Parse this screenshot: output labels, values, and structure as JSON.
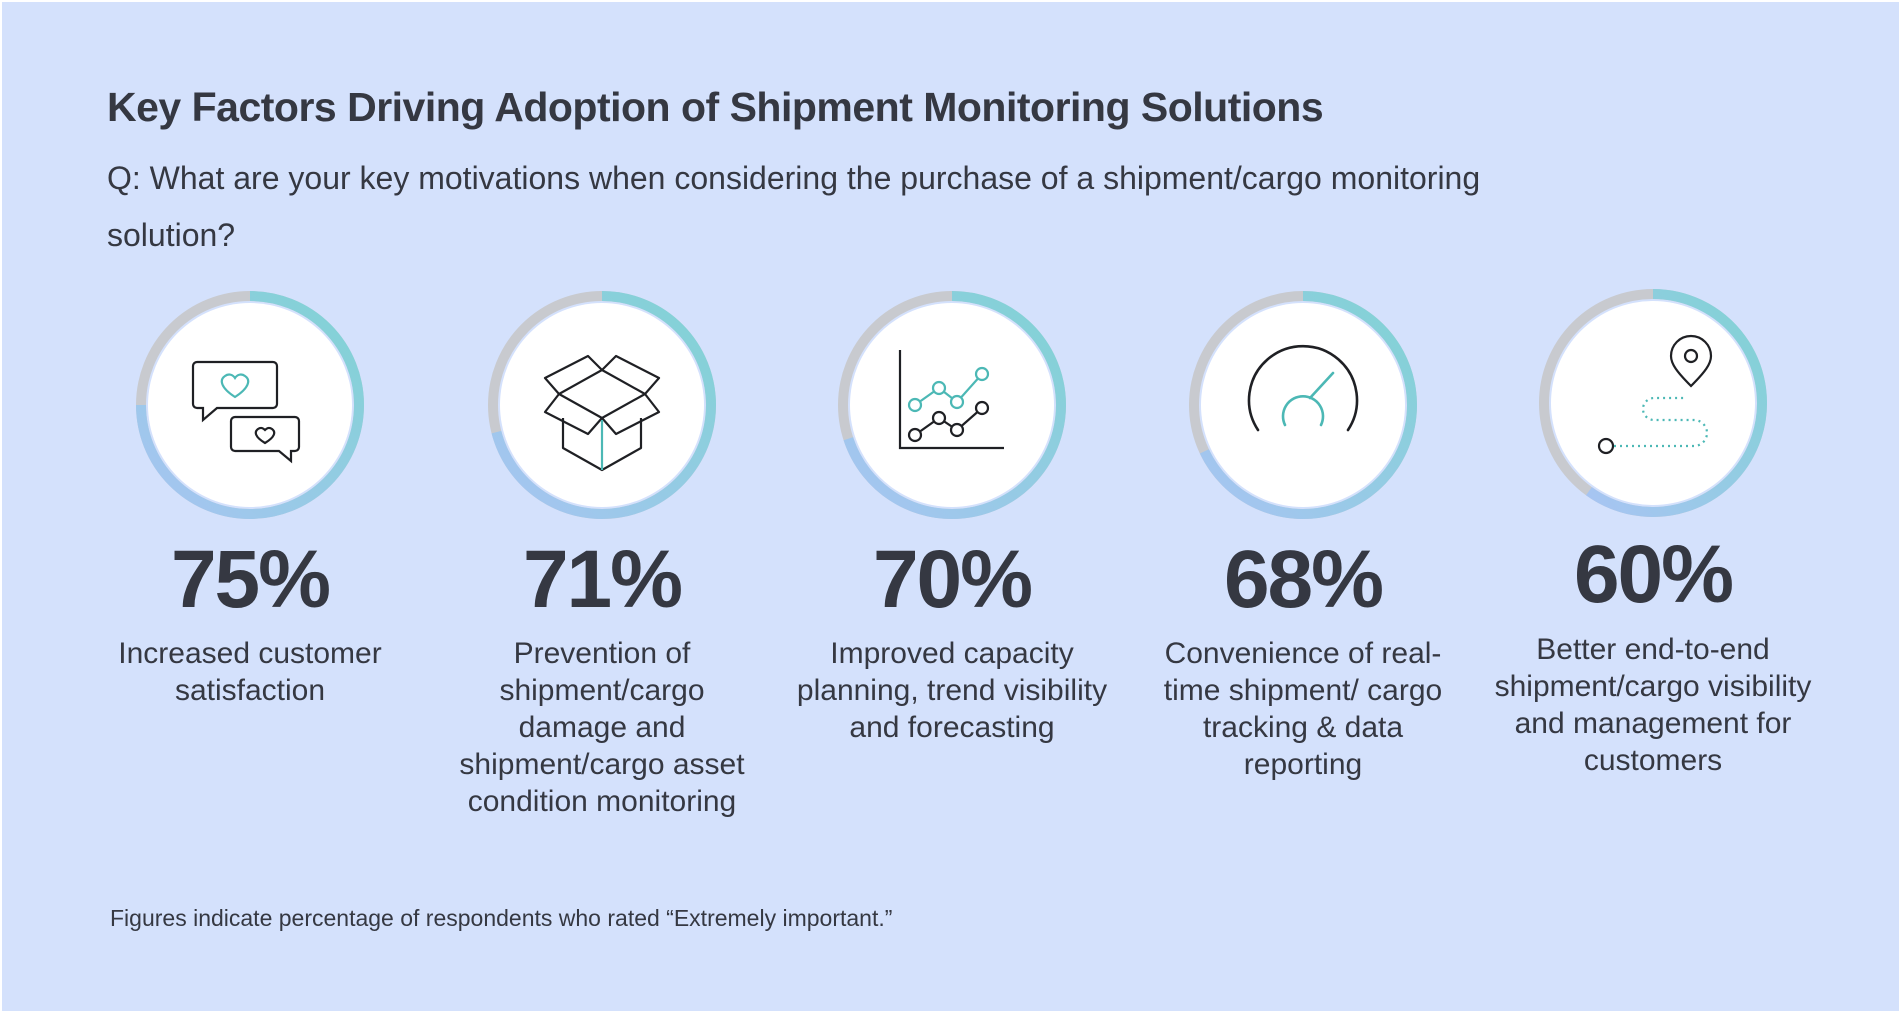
{
  "title": "Key Factors Driving Adoption of Shipment Monitoring Solutions",
  "subtitle": "Q: What are your key motivations when considering the purchase of a shipment/cargo monitoring solution?",
  "colors": {
    "background": "#d4e1fc",
    "text": "#353842",
    "ring_track": "#c8cacf",
    "ring_teal": "#7fd3d3",
    "ring_blue": "#a8c4f3",
    "icon_accent": "#4cb8b5"
  },
  "factors": [
    {
      "percent": "75%",
      "value": 75,
      "label": "Increased customer satisfaction",
      "icon": "chat-hearts-icon"
    },
    {
      "percent": "71%",
      "value": 71,
      "label": "Prevention of shipment/cargo damage and shipment/cargo asset condition monitoring",
      "icon": "open-box-icon"
    },
    {
      "percent": "70%",
      "value": 70,
      "label": "Improved capacity planning, trend visibility and forecasting",
      "icon": "line-chart-icon"
    },
    {
      "percent": "68%",
      "value": 68,
      "label": "Convenience of real-time shipment/ cargo tracking & data reporting",
      "icon": "gauge-icon"
    },
    {
      "percent": "60%",
      "value": 60,
      "label": "Better end-to-end shipment/cargo visibility and management for customers",
      "icon": "route-pin-icon"
    }
  ],
  "footnote": "Figures indicate percentage of respondents who rated “Extremely important.”"
}
